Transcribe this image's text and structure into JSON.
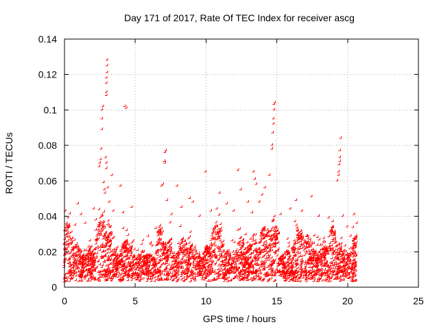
{
  "chart_data": {
    "type": "scatter",
    "title": "Day 171 of 2017, Rate Of TEC Index for receiver ascg",
    "xlabel": "GPS time / hours",
    "ylabel": "ROTI / TECUs",
    "xlim": [
      0,
      25
    ],
    "ylim": [
      0,
      0.14
    ],
    "x_ticks": [
      0,
      5,
      10,
      15,
      20,
      25
    ],
    "y_ticks": [
      0,
      0.02,
      0.04,
      0.06,
      0.08,
      0.1,
      0.12,
      0.14
    ],
    "x_tick_labels": [
      "0",
      "5",
      "10",
      "15",
      "20",
      "25"
    ],
    "y_tick_labels": [
      "0",
      "0.02",
      "0.04",
      "0.06",
      "0.08",
      "0.1",
      "0.12",
      "0.14"
    ],
    "grid": true,
    "marker": "plus",
    "series_color": "#ff0000",
    "series": [
      {
        "points": [
          [
            0.1,
            0.043
          ],
          [
            0.2,
            0.036
          ],
          [
            0.3,
            0.039
          ],
          [
            0.4,
            0.027
          ],
          [
            0.5,
            0.024
          ],
          [
            0.8,
            0.035
          ],
          [
            1.0,
            0.047
          ],
          [
            1.2,
            0.041
          ],
          [
            1.5,
            0.036
          ],
          [
            2.1,
            0.044
          ],
          [
            2.5,
            0.068
          ],
          [
            2.55,
            0.07
          ],
          [
            2.6,
            0.072
          ],
          [
            2.65,
            0.078
          ],
          [
            2.7,
            0.089
          ],
          [
            2.7,
            0.095
          ],
          [
            2.7,
            0.1
          ],
          [
            2.75,
            0.102
          ],
          [
            2.8,
            0.059
          ],
          [
            2.85,
            0.055
          ],
          [
            2.9,
            0.053
          ],
          [
            2.95,
            0.073
          ],
          [
            3.0,
            0.07
          ],
          [
            3.0,
            0.067
          ],
          [
            3.0,
            0.108
          ],
          [
            3.0,
            0.11
          ],
          [
            3.0,
            0.115
          ],
          [
            3.0,
            0.118
          ],
          [
            3.05,
            0.121
          ],
          [
            3.05,
            0.125
          ],
          [
            3.05,
            0.128
          ],
          [
            3.1,
            0.056
          ],
          [
            3.2,
            0.048
          ],
          [
            3.4,
            0.063
          ],
          [
            3.5,
            0.043
          ],
          [
            4.0,
            0.057
          ],
          [
            4.2,
            0.042
          ],
          [
            4.3,
            0.102
          ],
          [
            4.4,
            0.101
          ],
          [
            4.8,
            0.045
          ],
          [
            6.5,
            0.033
          ],
          [
            6.9,
            0.057
          ],
          [
            7.0,
            0.058
          ],
          [
            7.1,
            0.071
          ],
          [
            7.15,
            0.07
          ],
          [
            7.15,
            0.076
          ],
          [
            7.2,
            0.077
          ],
          [
            7.3,
            0.049
          ],
          [
            7.6,
            0.041
          ],
          [
            8.0,
            0.057
          ],
          [
            8.3,
            0.045
          ],
          [
            8.9,
            0.05
          ],
          [
            9.1,
            0.048
          ],
          [
            9.6,
            0.04
          ],
          [
            10.0,
            0.065
          ],
          [
            10.4,
            0.043
          ],
          [
            10.8,
            0.044
          ],
          [
            11.0,
            0.053
          ],
          [
            11.5,
            0.047
          ],
          [
            12.0,
            0.043
          ],
          [
            12.3,
            0.066
          ],
          [
            12.5,
            0.055
          ],
          [
            13.0,
            0.048
          ],
          [
            13.3,
            0.042
          ],
          [
            13.4,
            0.065
          ],
          [
            13.5,
            0.061
          ],
          [
            13.6,
            0.058
          ],
          [
            13.8,
            0.048
          ],
          [
            14.0,
            0.052
          ],
          [
            14.2,
            0.056
          ],
          [
            14.5,
            0.063
          ],
          [
            14.7,
            0.078
          ],
          [
            14.7,
            0.08
          ],
          [
            14.75,
            0.087
          ],
          [
            14.8,
            0.092
          ],
          [
            14.8,
            0.095
          ],
          [
            14.85,
            0.1
          ],
          [
            14.85,
            0.103
          ],
          [
            14.9,
            0.104
          ],
          [
            15.3,
            0.041
          ],
          [
            16.0,
            0.044
          ],
          [
            16.4,
            0.049
          ],
          [
            16.8,
            0.043
          ],
          [
            17.5,
            0.051
          ],
          [
            18.0,
            0.04
          ],
          [
            18.7,
            0.039
          ],
          [
            19.0,
            0.037
          ],
          [
            19.3,
            0.06
          ],
          [
            19.4,
            0.063
          ],
          [
            19.4,
            0.065
          ],
          [
            19.45,
            0.069
          ],
          [
            19.5,
            0.071
          ],
          [
            19.5,
            0.073
          ],
          [
            19.5,
            0.077
          ],
          [
            19.55,
            0.084
          ],
          [
            19.7,
            0.04
          ],
          [
            20.0,
            0.034
          ],
          [
            20.5,
            0.041
          ],
          [
            20.7,
            0.036
          ]
        ]
      }
    ]
  }
}
